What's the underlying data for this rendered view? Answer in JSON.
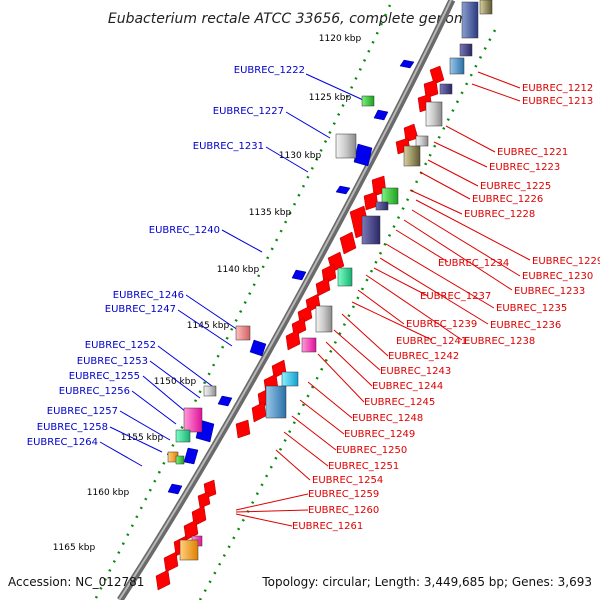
{
  "title": "Eubacterium rectale ATCC 33656, complete genome",
  "footer": {
    "accession": "Accession: NC_012781",
    "summary": "Topology: circular; Length: 3,449,685 bp; Genes: 3,693"
  },
  "colors": {
    "forward_label": "#0000cc",
    "reverse_label": "#dd0000",
    "forward_gene": "#0000ee",
    "reverse_gene": "#ff0000",
    "tick": "#008800",
    "backbone": "#888888"
  },
  "kbp_ticks": [
    "1120 kbp",
    "1125 kbp",
    "1130 kbp",
    "1135 kbp",
    "1140 kbp",
    "1145 kbp",
    "1150 kbp",
    "1155 kbp",
    "1160 kbp",
    "1165 kbp"
  ],
  "left_labels": [
    "EUBREC_1222",
    "EUBREC_1227",
    "EUBREC_1231",
    "EUBREC_1240",
    "EUBREC_1246",
    "EUBREC_1247",
    "EUBREC_1252",
    "EUBREC_1253",
    "EUBREC_1255",
    "EUBREC_1256",
    "EUBREC_1257",
    "EUBREC_1258",
    "EUBREC_1264"
  ],
  "right_labels": [
    "EUBREC_1212",
    "EUBREC_1213",
    "EUBREC_1221",
    "EUBREC_1223",
    "EUBREC_1225",
    "EUBREC_1226",
    "EUBREC_1228",
    "EUBREC_1229",
    "EUBREC_1230",
    "EUBREC_1233",
    "EUBREC_1234",
    "EUBREC_1235",
    "EUBREC_1236",
    "EUBREC_1237",
    "EUBREC_1238",
    "EUBREC_1239",
    "EUBREC_1241",
    "EUBREC_1242",
    "EUBREC_1243",
    "EUBREC_1244",
    "EUBREC_1245",
    "EUBREC_1248",
    "EUBREC_1249",
    "EUBREC_1250",
    "EUBREC_1251",
    "EUBREC_1254",
    "EUBREC_1259",
    "EUBREC_1260",
    "EUBREC_1261"
  ]
}
